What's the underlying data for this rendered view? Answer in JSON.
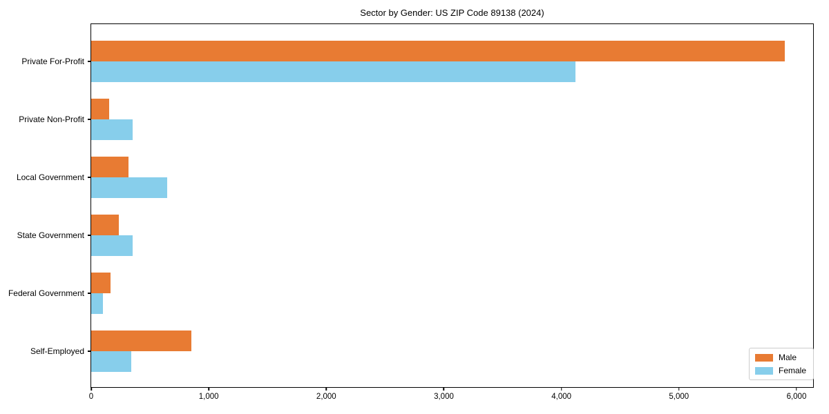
{
  "chart_data": {
    "type": "bar",
    "orientation": "horizontal",
    "title": "Sector by Gender: US ZIP Code 89138 (2024)",
    "categories": [
      "Private For-Profit",
      "Private Non-Profit",
      "Local Government",
      "State Government",
      "Federal Government",
      "Self-Employed"
    ],
    "series": [
      {
        "name": "Male",
        "color": "#e87b33",
        "values": [
          5900,
          150,
          315,
          235,
          165,
          850
        ]
      },
      {
        "name": "Female",
        "color": "#87ceeb",
        "values": [
          4120,
          355,
          645,
          350,
          100,
          340
        ]
      }
    ],
    "xlabel": "",
    "ylabel": "",
    "xlim": [
      0,
      6153
    ],
    "x_ticks": [
      0,
      1000,
      2000,
      3000,
      4000,
      5000,
      6000
    ],
    "x_tick_labels": [
      "0",
      "1,000",
      "2,000",
      "3,000",
      "4,000",
      "5,000",
      "6,000"
    ],
    "grid": false,
    "legend": {
      "position": "lower right",
      "entries": [
        "Male",
        "Female"
      ]
    }
  }
}
